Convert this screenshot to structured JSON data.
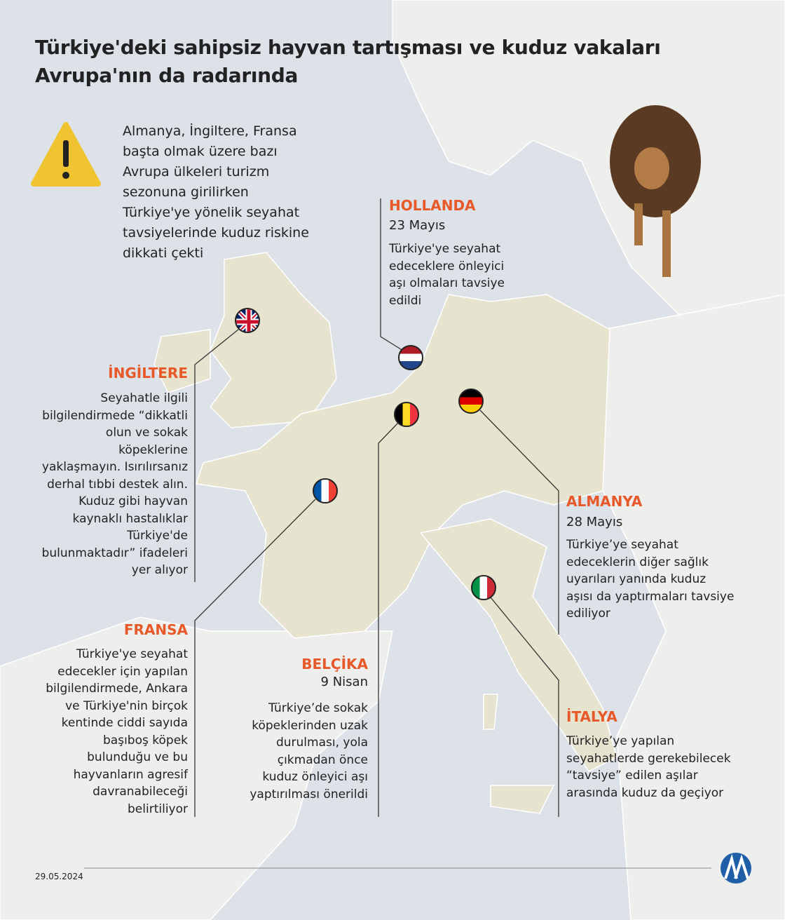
{
  "title": {
    "line1": "Türkiye'deki sahipsiz hayvan tartışması ve kuduz vakaları",
    "line2": "Avrupa'nın da radarında"
  },
  "intro": {
    "icon": "warning-icon",
    "text": "Almanya, İngiltere, Fransa başta olmak üzere bazı Avrupa ülkeleri turizm sezonuna girilirken Türkiye'ye yönelik seyahat tavsiyelerinde kuduz riskine dikkati çekti"
  },
  "countries": {
    "hollanda": {
      "name": "HOLLANDA",
      "date": "23 Mayıs",
      "text": "Türkiye'ye seyahat edeceklere önleyici aşı olmaları tavsiye edildi"
    },
    "ingiltere": {
      "name": "İNGİLTERE",
      "text": "Seyahatle ilgili bilgilendirmede “dikkatli olun ve sokak köpeklerine yaklaşmayın. Isırılırsanız derhal tıbbi destek alın. Kuduz gibi hayvan kaynaklı hastalıklar Türkiye'de bulunmaktadır” ifadeleri yer alıyor"
    },
    "fransa": {
      "name": "FRANSA",
      "text": "Türkiye'ye seyahat edecekler için yapılan bilgilendirmede, Ankara ve Türkiye'nin birçok kentinde ciddi sayıda başıboş köpek bulunduğu ve bu hayvanların agresif davranabileceği belirtiliyor"
    },
    "belcika": {
      "name": "BELÇİKA",
      "date": "9 Nisan",
      "text": "Türkiye’de sokak köpeklerinden uzak durulması, yola çıkmadan önce kuduz önleyici aşı yaptırılması önerildi"
    },
    "almanya": {
      "name": "ALMANYA",
      "date": "28 Mayıs",
      "text": "Türkiye’ye seyahat edeceklerin diğer sağlık uyarıları yanında kuduz aşısı da yaptırmaları tavsiye ediliyor"
    },
    "italya": {
      "name": "İTALYA",
      "text": "Türkiye’ye yapılan seyahatlerde gerekebilecek “tavsiye” edilen aşılar arasında kuduz da geçiyor"
    }
  },
  "footer": {
    "date": "29.05.2024",
    "logo": "AA"
  },
  "colors": {
    "accent": "#e8592a",
    "land": "#e6e3cf",
    "sea": "#dde2e8"
  }
}
